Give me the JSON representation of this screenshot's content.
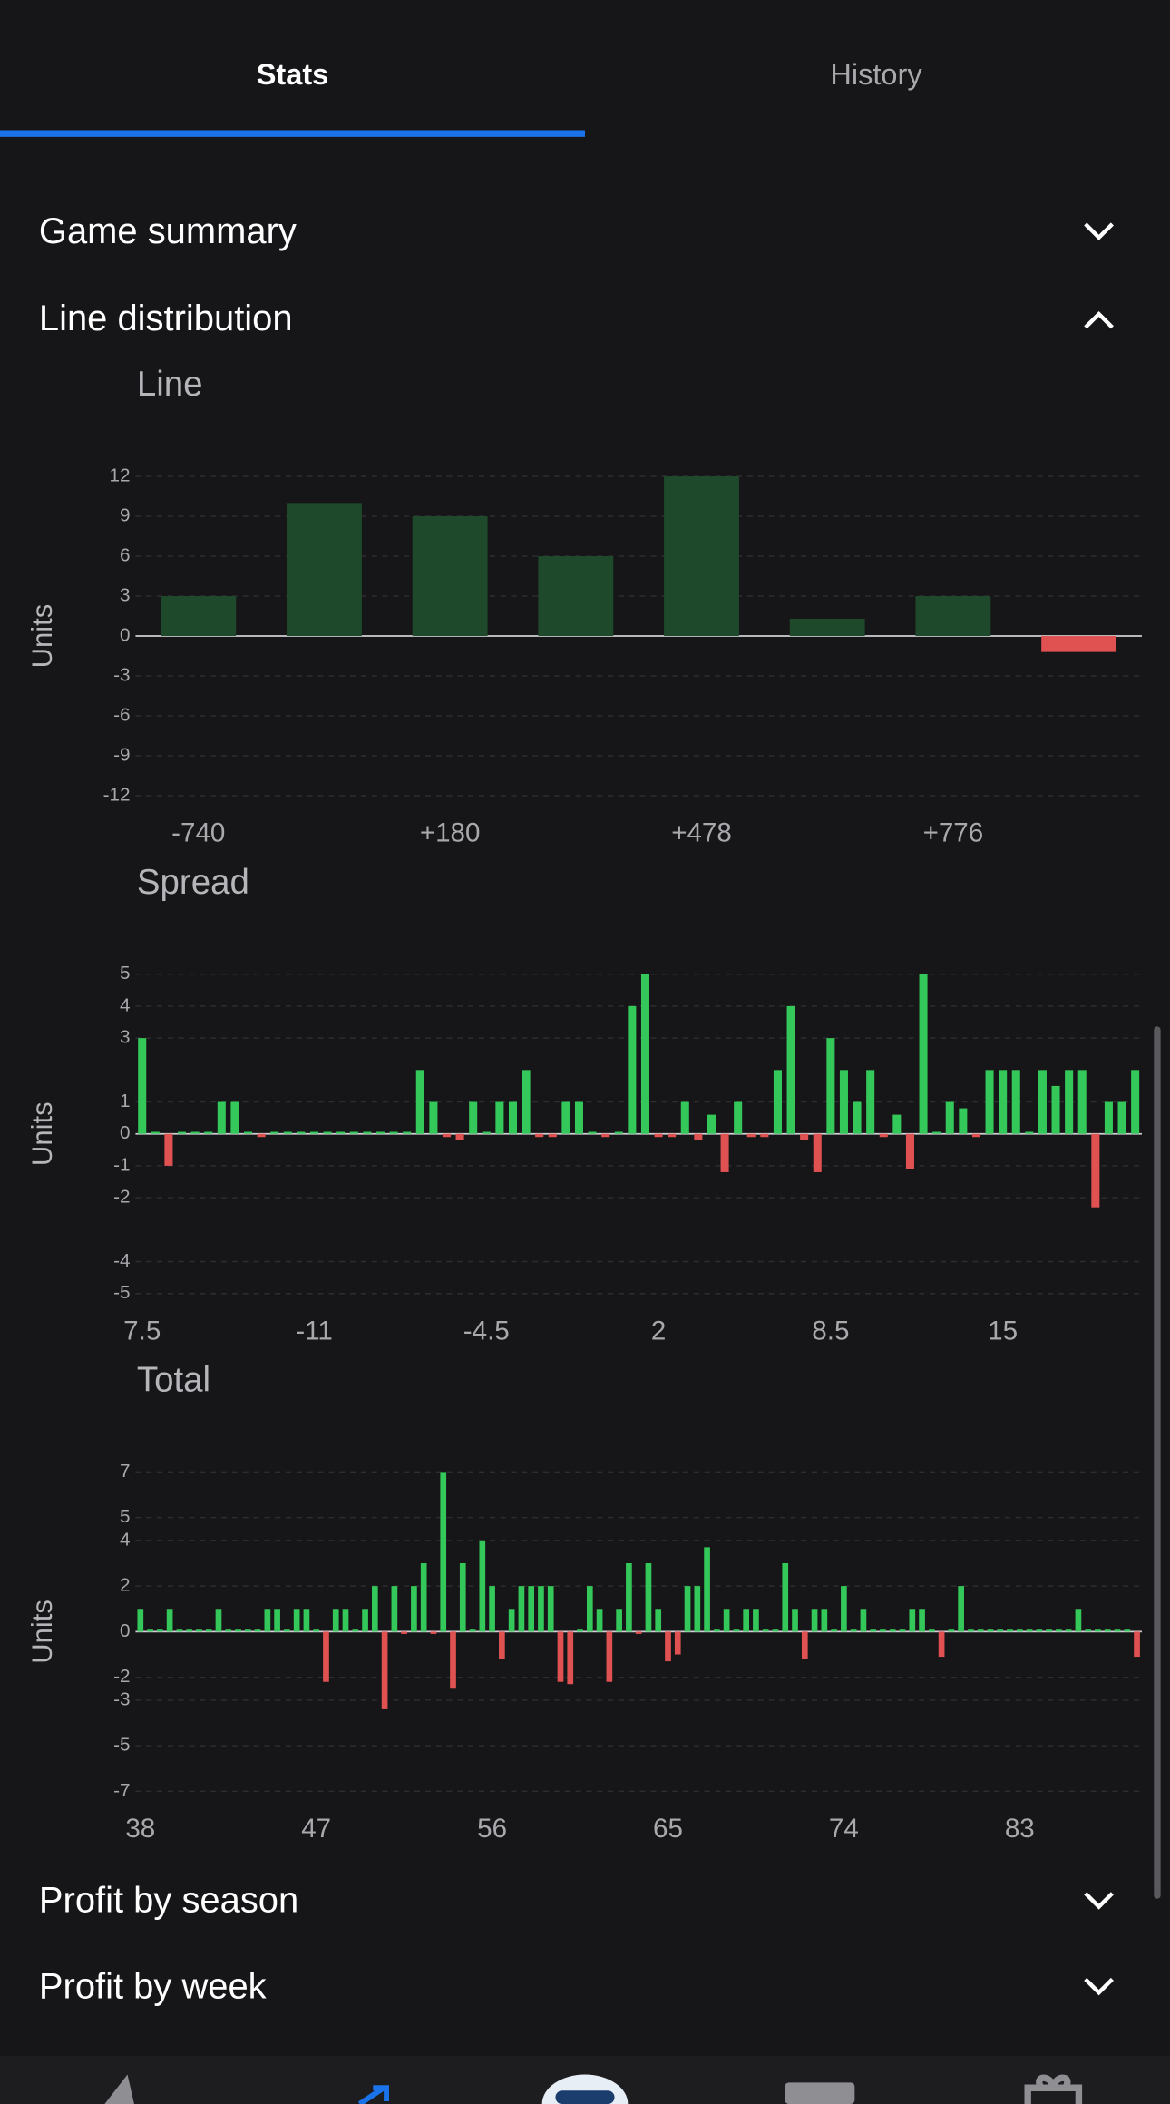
{
  "tabs": [
    "Stats",
    "History"
  ],
  "sections": [
    "Game summary",
    "Line distribution",
    "Profit by season",
    "Profit by week"
  ],
  "chart_data": [
    {
      "type": "bar",
      "title": "Line",
      "y_label": "Units",
      "color": "#1e4a2b",
      "negative_color": "#e05252",
      "grid": true,
      "categories": [
        "-740",
        null,
        "+180",
        null,
        "+478",
        null,
        "+776",
        null
      ],
      "values": [
        3,
        10,
        9,
        6,
        12,
        1.3,
        3,
        -1.2
      ],
      "ylim": [
        -12,
        12
      ],
      "yticks": [
        -12,
        -9,
        -6,
        -3,
        0,
        3,
        6,
        9,
        12
      ]
    },
    {
      "type": "bar",
      "title": "Spread",
      "y_label": "Units",
      "color": "#34c759",
      "negative_color": "#e05252",
      "grid": true,
      "categories": [
        "7.5",
        null,
        null,
        null,
        null,
        null,
        null,
        null,
        null,
        null,
        null,
        null,
        null,
        "-11",
        null,
        null,
        null,
        null,
        null,
        null,
        null,
        null,
        null,
        null,
        null,
        null,
        "-4.5",
        null,
        null,
        null,
        null,
        null,
        null,
        null,
        null,
        null,
        null,
        null,
        null,
        "2",
        null,
        null,
        null,
        null,
        null,
        null,
        null,
        null,
        null,
        null,
        null,
        null,
        "8.5",
        null,
        null,
        null,
        null,
        null,
        null,
        null,
        null,
        null,
        null,
        null,
        null,
        "15",
        null,
        null,
        null,
        null,
        null,
        null,
        null,
        null,
        null,
        null
      ],
      "values": [
        3,
        0,
        -1,
        0,
        0,
        0,
        1,
        1,
        0,
        -0.1,
        0,
        0,
        0,
        0,
        0,
        0,
        0,
        0,
        0,
        0,
        0,
        2,
        1,
        -0.1,
        -0.2,
        1,
        0,
        1,
        1,
        2,
        -0.1,
        -0.1,
        1,
        1,
        0,
        -0.1,
        0,
        4,
        5,
        -0.1,
        -0.1,
        1,
        -0.2,
        0.6,
        -1.2,
        1,
        -0.1,
        -0.1,
        2,
        4,
        -0.2,
        -1.2,
        3,
        2,
        1,
        2,
        -0.1,
        0.6,
        -1.1,
        5,
        0,
        1,
        0.8,
        -0.1,
        2,
        2,
        2,
        0,
        2,
        1.5,
        2,
        2,
        -2.3,
        1,
        1,
        2
      ],
      "ylim": [
        -5,
        5
      ],
      "yticks": [
        -5,
        -4,
        -2,
        -1,
        0,
        1,
        3,
        4,
        5
      ]
    },
    {
      "type": "bar",
      "title": "Total",
      "y_label": "Units",
      "color": "#34c759",
      "negative_color": "#e05252",
      "grid": true,
      "categories": [
        "38",
        null,
        null,
        null,
        null,
        null,
        null,
        null,
        null,
        null,
        null,
        null,
        null,
        null,
        null,
        null,
        null,
        null,
        "47",
        null,
        null,
        null,
        null,
        null,
        null,
        null,
        null,
        null,
        null,
        null,
        null,
        null,
        null,
        null,
        null,
        null,
        "56",
        null,
        null,
        null,
        null,
        null,
        null,
        null,
        null,
        null,
        null,
        null,
        null,
        null,
        null,
        null,
        null,
        null,
        "65",
        null,
        null,
        null,
        null,
        null,
        null,
        null,
        null,
        null,
        null,
        null,
        null,
        null,
        null,
        null,
        null,
        null,
        "74",
        null,
        null,
        null,
        null,
        null,
        null,
        null,
        null,
        null,
        null,
        null,
        null,
        null,
        null,
        null,
        null,
        null,
        "83",
        null,
        null,
        null,
        null,
        null,
        null,
        null,
        null,
        null,
        null,
        null,
        null
      ],
      "values": [
        1,
        0,
        0,
        1,
        0,
        0,
        0,
        0,
        1,
        0,
        0,
        0,
        0,
        1,
        1,
        0,
        1,
        1,
        0,
        -2.2,
        1,
        1,
        0,
        1,
        2,
        -3.4,
        2,
        -0.1,
        2,
        3,
        -0.1,
        7,
        -2.5,
        3,
        0,
        4,
        2,
        -1.2,
        1,
        2,
        2,
        2,
        2,
        -2.2,
        -2.3,
        0,
        2,
        1,
        -2.2,
        1,
        3,
        -0.1,
        3,
        1,
        -1.3,
        -1,
        2,
        2,
        3.7,
        0,
        1,
        0,
        1,
        1,
        0,
        0,
        3,
        1,
        -1.2,
        1,
        1,
        0,
        2,
        0,
        1,
        0,
        0,
        0,
        0,
        1,
        1,
        0,
        -1.1,
        0,
        2,
        0,
        0,
        0,
        0,
        0,
        0,
        0,
        0,
        0,
        0,
        0,
        1,
        0,
        0,
        0,
        0,
        0,
        -1.1
      ],
      "ylim": [
        -7,
        7
      ],
      "yticks": [
        -7,
        -5,
        -3,
        -2,
        0,
        2,
        4,
        5,
        7
      ]
    }
  ]
}
